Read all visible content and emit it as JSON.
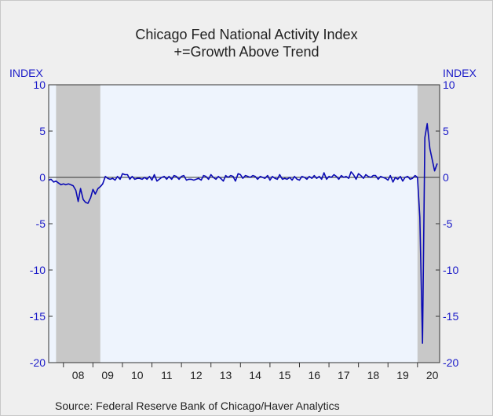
{
  "chart_data": {
    "type": "line",
    "title": "Chicago Fed National Activity Index",
    "subtitle": "+=Growth Above Trend",
    "ylabel_left": "INDEX",
    "ylabel_right": "INDEX",
    "ylim": [
      -20,
      10
    ],
    "yticks": [
      10,
      5,
      0,
      -5,
      -10,
      -15,
      -20
    ],
    "xlim": [
      2007.5,
      2020.75
    ],
    "xticks": [
      {
        "label": "08",
        "x": 2008
      },
      {
        "label": "09",
        "x": 2009
      },
      {
        "label": "10",
        "x": 2010
      },
      {
        "label": "11",
        "x": 2011
      },
      {
        "label": "12",
        "x": 2012
      },
      {
        "label": "13",
        "x": 2013
      },
      {
        "label": "14",
        "x": 2014
      },
      {
        "label": "15",
        "x": 2015
      },
      {
        "label": "16",
        "x": 2016
      },
      {
        "label": "17",
        "x": 2017
      },
      {
        "label": "18",
        "x": 2018
      },
      {
        "label": "19",
        "x": 2019
      },
      {
        "label": "20",
        "x": 2020
      }
    ],
    "recessions": [
      {
        "start": 2007.75,
        "end": 2009.25
      },
      {
        "start": 2020.0,
        "end": 2020.75
      }
    ],
    "series": [
      {
        "color": "#0a0ab4",
        "x": [
          2007.5,
          2007.58,
          2007.67,
          2007.75,
          2007.83,
          2007.92,
          2008.0,
          2008.08,
          2008.17,
          2008.25,
          2008.33,
          2008.42,
          2008.5,
          2008.58,
          2008.67,
          2008.75,
          2008.83,
          2008.92,
          2009.0,
          2009.08,
          2009.17,
          2009.25,
          2009.33,
          2009.42,
          2009.5,
          2009.58,
          2009.67,
          2009.75,
          2009.83,
          2009.92,
          2010.0,
          2010.08,
          2010.17,
          2010.25,
          2010.33,
          2010.42,
          2010.5,
          2010.58,
          2010.67,
          2010.75,
          2010.83,
          2010.92,
          2011.0,
          2011.08,
          2011.17,
          2011.25,
          2011.33,
          2011.42,
          2011.5,
          2011.58,
          2011.67,
          2011.75,
          2011.83,
          2011.92,
          2012.0,
          2012.08,
          2012.17,
          2012.25,
          2012.33,
          2012.42,
          2012.5,
          2012.58,
          2012.67,
          2012.75,
          2012.83,
          2012.92,
          2013.0,
          2013.08,
          2013.17,
          2013.25,
          2013.33,
          2013.42,
          2013.5,
          2013.58,
          2013.67,
          2013.75,
          2013.83,
          2013.92,
          2014.0,
          2014.08,
          2014.17,
          2014.25,
          2014.33,
          2014.42,
          2014.5,
          2014.58,
          2014.67,
          2014.75,
          2014.83,
          2014.92,
          2015.0,
          2015.08,
          2015.17,
          2015.25,
          2015.33,
          2015.42,
          2015.5,
          2015.58,
          2015.67,
          2015.75,
          2015.83,
          2015.92,
          2016.0,
          2016.08,
          2016.17,
          2016.25,
          2016.33,
          2016.42,
          2016.5,
          2016.58,
          2016.67,
          2016.75,
          2016.83,
          2016.92,
          2017.0,
          2017.08,
          2017.17,
          2017.25,
          2017.33,
          2017.42,
          2017.5,
          2017.58,
          2017.67,
          2017.75,
          2017.83,
          2017.92,
          2018.0,
          2018.08,
          2018.17,
          2018.25,
          2018.33,
          2018.42,
          2018.5,
          2018.58,
          2018.67,
          2018.75,
          2018.83,
          2018.92,
          2019.0,
          2019.08,
          2019.17,
          2019.25,
          2019.33,
          2019.42,
          2019.5,
          2019.58,
          2019.67,
          2019.75,
          2019.83,
          2019.92,
          2020.0,
          2020.08,
          2020.17,
          2020.25,
          2020.33,
          2020.42,
          2020.5,
          2020.58,
          2020.67
        ],
        "values": [
          -0.3,
          -0.2,
          -0.5,
          -0.4,
          -0.6,
          -0.8,
          -0.7,
          -0.8,
          -0.7,
          -0.8,
          -0.9,
          -1.4,
          -2.6,
          -1.2,
          -2.4,
          -2.7,
          -2.8,
          -2.2,
          -1.3,
          -1.8,
          -1.2,
          -1.0,
          -0.7,
          0.1,
          -0.1,
          -0.2,
          -0.1,
          -0.3,
          0.1,
          -0.2,
          0.4,
          0.3,
          0.3,
          -0.2,
          0.1,
          -0.2,
          -0.1,
          -0.1,
          -0.2,
          0.0,
          -0.2,
          0.1,
          -0.3,
          0.3,
          -0.4,
          -0.2,
          0.0,
          0.1,
          -0.2,
          0.1,
          -0.2,
          0.2,
          0.1,
          -0.2,
          0.1,
          0.2,
          -0.3,
          -0.2,
          -0.2,
          -0.3,
          -0.2,
          -0.1,
          -0.3,
          0.2,
          0.1,
          -0.2,
          0.3,
          0.0,
          -0.2,
          0.1,
          -0.1,
          -0.4,
          0.2,
          0.0,
          0.2,
          0.1,
          -0.4,
          0.4,
          0.3,
          -0.1,
          0.2,
          0.1,
          0.0,
          0.2,
          0.1,
          -0.2,
          0.1,
          0.0,
          -0.1,
          0.2,
          -0.3,
          0.1,
          -0.1,
          -0.2,
          0.3,
          -0.2,
          -0.1,
          -0.2,
          0.0,
          -0.3,
          0.1,
          -0.2,
          -0.3,
          0.1,
          0.0,
          -0.2,
          0.1,
          -0.1,
          0.2,
          -0.1,
          0.1,
          -0.2,
          0.5,
          -0.2,
          0.1,
          0.0,
          0.3,
          0.1,
          -0.2,
          0.2,
          0.0,
          0.1,
          -0.1,
          0.6,
          0.3,
          -0.2,
          0.4,
          0.2,
          -0.1,
          0.3,
          0.1,
          0.0,
          0.2,
          0.2,
          -0.2,
          0.1,
          0.0,
          -0.1,
          -0.3,
          0.2,
          -0.5,
          0.0,
          -0.2,
          0.1,
          -0.4,
          0.0,
          0.1,
          -0.2,
          -0.1,
          0.2,
          0.0,
          -4.3,
          -17.9,
          4.3,
          5.8,
          3.1,
          1.9,
          0.7,
          1.5
        ]
      }
    ]
  },
  "source": "Source:  Federal Reserve Bank of Chicago/Haver Analytics"
}
